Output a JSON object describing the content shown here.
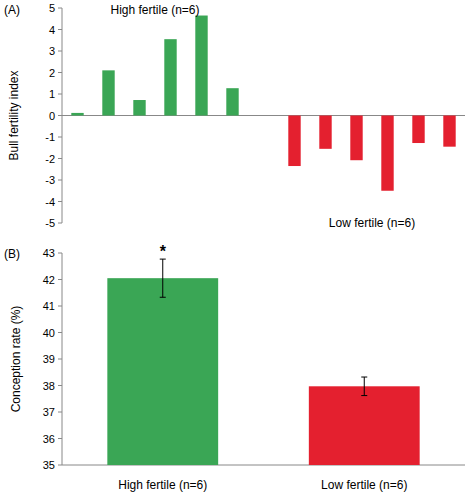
{
  "chart_data": [
    {
      "type": "bar",
      "panel_label": "(A)",
      "y_label": "Bull fertility index",
      "categories": [
        null,
        null,
        null,
        null,
        null,
        null,
        null,
        null,
        null,
        null,
        null,
        null,
        null
      ],
      "series": [
        {
          "name": "High fertile (n=6)",
          "color": "#3aa655",
          "values": [
            0.12,
            2.1,
            0.72,
            3.55,
            4.65,
            1.27,
            null,
            null,
            null,
            null,
            null,
            null,
            null
          ]
        },
        {
          "name": "Low fertile (n=6)",
          "color": "#e4202f",
          "values": [
            null,
            null,
            null,
            null,
            null,
            null,
            null,
            -2.35,
            -1.55,
            -2.08,
            -3.5,
            -1.28,
            -1.45
          ]
        }
      ],
      "ylim": [
        -5,
        5
      ],
      "yticks": [
        -5,
        -4,
        -3,
        -2,
        -1,
        0,
        1,
        2,
        3,
        4,
        5
      ],
      "tick_labels": "y",
      "grid": false
    },
    {
      "type": "bar",
      "panel_label": "(B)",
      "y_label": "Conception rate (%)",
      "categories": [
        "High fertile (n=6)",
        "Low fertile (n=6)"
      ],
      "values": [
        42.05,
        37.97
      ],
      "errors": [
        0.72,
        0.35
      ],
      "significance": [
        "*",
        null
      ],
      "colors": [
        "#3aa655",
        "#e4202f"
      ],
      "ylim": [
        35,
        43
      ],
      "yticks": [
        35,
        36,
        37,
        38,
        39,
        40,
        41,
        42,
        43
      ],
      "grid": false
    }
  ]
}
